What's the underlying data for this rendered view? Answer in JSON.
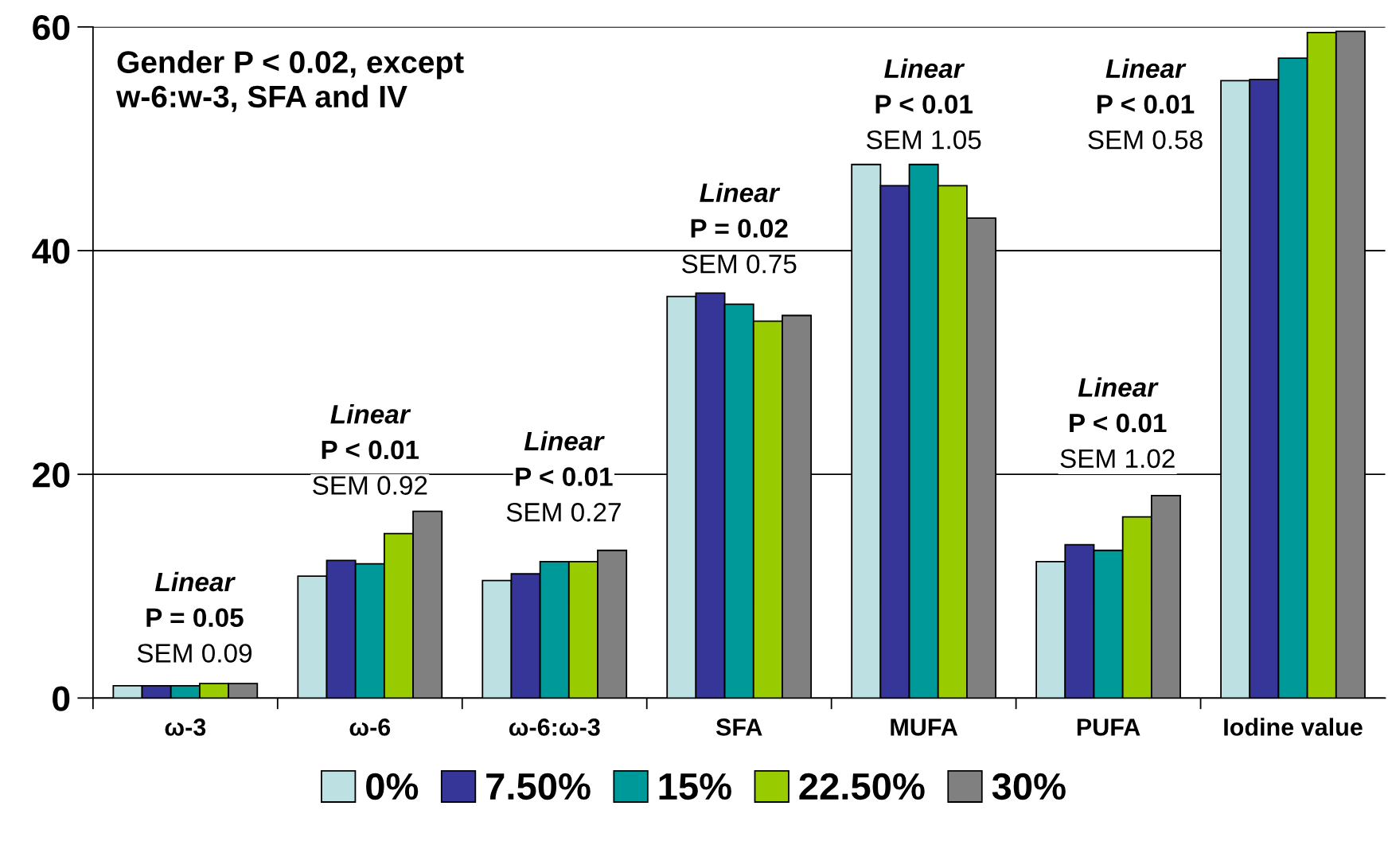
{
  "chart_data": {
    "type": "bar",
    "categories": [
      "ω-3",
      "ω-6",
      "ω-6:ω-3",
      "SFA",
      "MUFA",
      "PUFA",
      "Iodine value"
    ],
    "series": [
      {
        "name": "0%",
        "color": "#bde0e3",
        "values": [
          1.1,
          10.9,
          10.5,
          35.9,
          47.7,
          12.2,
          55.2
        ]
      },
      {
        "name": "7.50%",
        "color": "#363598",
        "values": [
          1.1,
          12.3,
          11.1,
          36.2,
          45.8,
          13.7,
          55.3
        ]
      },
      {
        "name": "15%",
        "color": "#009999",
        "values": [
          1.1,
          12.0,
          12.2,
          35.2,
          47.7,
          13.2,
          57.2
        ]
      },
      {
        "name": "22.50%",
        "color": "#99cc00",
        "values": [
          1.3,
          14.7,
          12.2,
          33.7,
          45.8,
          16.2,
          59.5
        ]
      },
      {
        "name": "30%",
        "color": "#808080",
        "values": [
          1.3,
          16.7,
          13.2,
          34.2,
          42.9,
          18.1,
          59.6
        ]
      }
    ],
    "ylim": [
      0,
      60
    ],
    "yticks": [
      0,
      20,
      40,
      60
    ],
    "grid": "y",
    "legend": "bottom",
    "annotations": [
      "Gender P < 0.02, except\nw-6:w-3, SFA and IV",
      "Linear\nP = 0.05\nSEM 0.09",
      "Linear\nP < 0.01\nSEM 0.92",
      "Linear\nP < 0.01\nSEM 0.27",
      "Linear\nP = 0.02\nSEM 0.75",
      "Linear\nP < 0.01\nSEM 1.05",
      "Linear\nP < 0.01\nSEM 1.02",
      "Linear\nP < 0.01\nSEM 0.58"
    ]
  }
}
